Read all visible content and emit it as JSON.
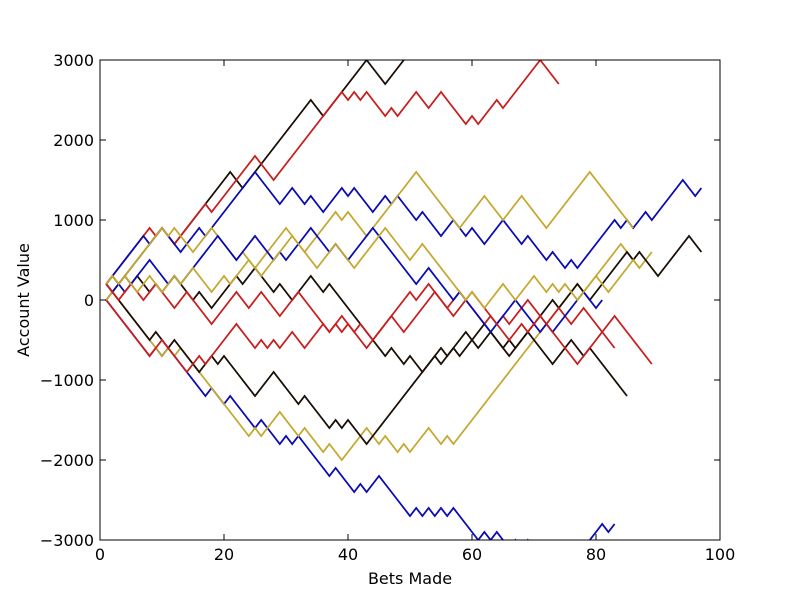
{
  "chart_data": {
    "type": "line",
    "title": "",
    "xlabel": "Bets Made",
    "ylabel": "Account Value",
    "xlim": [
      0,
      100
    ],
    "ylim": [
      -3000,
      3000
    ],
    "xticks": [
      0,
      20,
      40,
      60,
      80,
      100
    ],
    "yticks": [
      -3000,
      -2000,
      -1000,
      0,
      1000,
      2000,
      3000
    ],
    "tick_labels": {
      "x": [
        "0",
        "20",
        "40",
        "60",
        "80",
        "100"
      ],
      "y": [
        "−3000",
        "−2000",
        "−1000",
        "0",
        "1000",
        "2000",
        "3000"
      ]
    },
    "grid": false,
    "legend": "none",
    "step_size": 100,
    "colors": [
      "#1a0e04",
      "#c81e1e",
      "#0a0ab4",
      "#c4a830",
      "#8b1a1a"
    ],
    "series": [
      {
        "color": "#1a0e04",
        "start": 1,
        "start_value": 0,
        "steps": [
          1,
          1,
          1,
          1,
          1,
          1,
          1,
          1,
          1,
          -1,
          -1,
          1,
          1,
          1,
          1,
          1,
          1,
          1,
          1,
          1,
          -1,
          -1,
          1,
          1,
          1,
          1,
          1,
          1,
          1,
          1,
          1,
          1,
          1,
          -1,
          -1,
          1,
          1,
          1,
          1,
          1,
          1,
          1,
          -1,
          -1,
          -1,
          1,
          1,
          1,
          1,
          1,
          1,
          1,
          1,
          -1,
          1,
          -1,
          1,
          1,
          1,
          1,
          1,
          1,
          1,
          1,
          -1,
          -1,
          -1,
          1,
          1,
          1,
          -1,
          -1,
          1,
          -1,
          1,
          1,
          1,
          1,
          -1,
          -1,
          1,
          -1,
          1,
          1,
          1,
          -1,
          -1,
          1,
          1,
          1,
          -1,
          -1,
          1,
          1,
          1,
          -1,
          1
        ]
      },
      {
        "color": "#c81e1e",
        "start": 1,
        "start_value": 200,
        "steps": [
          1,
          1,
          1,
          1,
          1,
          1,
          1,
          -1,
          1,
          -1,
          -1,
          1,
          1,
          1,
          1,
          1,
          -1,
          1,
          1,
          1,
          1,
          1,
          1,
          1,
          -1,
          -1,
          -1,
          1,
          1,
          1,
          1,
          1,
          1,
          1,
          1,
          1,
          1,
          1,
          -1,
          1,
          -1,
          1,
          -1,
          -1,
          -1,
          1,
          -1,
          1,
          1,
          1,
          -1,
          -1,
          1,
          1,
          -1,
          -1,
          -1,
          -1,
          1,
          -1,
          1,
          1,
          1,
          -1,
          1,
          1,
          1,
          1,
          1,
          1,
          -1,
          -1,
          -1
        ]
      },
      {
        "color": "#0a0ab4",
        "start": 1,
        "start_value": 0,
        "steps": [
          -1,
          -1,
          -1,
          -1,
          -1,
          -1,
          -1,
          1,
          -1,
          1,
          -1,
          -1,
          -1,
          -1,
          -1,
          -1,
          1,
          -1,
          -1,
          1,
          -1,
          -1,
          -1,
          -1,
          1,
          -1,
          -1,
          -1,
          1,
          -1,
          1,
          -1,
          -1,
          -1,
          -1,
          -1,
          1,
          -1,
          -1,
          -1,
          1,
          -1,
          1,
          1,
          -1,
          -1,
          -1,
          -1,
          -1,
          1,
          -1,
          1,
          -1,
          1,
          -1,
          1,
          -1,
          -1,
          -1,
          -1,
          1,
          -1,
          1,
          -1,
          -1,
          1,
          -1,
          1,
          -1,
          -1,
          -1,
          -1,
          1,
          1,
          1,
          -1,
          1,
          1,
          1,
          1,
          -1,
          1
        ]
      },
      {
        "color": "#c4a830",
        "start": 1,
        "start_value": 200,
        "steps": [
          -1,
          -1,
          -1,
          -1,
          -1,
          -1,
          -1,
          -1,
          -1,
          1,
          -1,
          1,
          -1,
          -1,
          -1,
          -1,
          -1,
          -1,
          -1,
          -1,
          -1,
          -1,
          -1,
          1,
          -1,
          1,
          1,
          1,
          -1,
          -1,
          -1,
          1,
          -1,
          -1,
          -1,
          1,
          -1,
          -1,
          1,
          1,
          1,
          1,
          -1,
          -1,
          1,
          -1,
          -1,
          1,
          -1,
          1,
          1,
          1,
          -1,
          -1,
          1,
          -1,
          1,
          1,
          1,
          1,
          1,
          1,
          1,
          1,
          1,
          1,
          1,
          1,
          1,
          1,
          1,
          1,
          1,
          1,
          1,
          1,
          -1,
          1,
          1,
          1,
          1,
          1,
          1,
          -1,
          -1,
          -1,
          1,
          1
        ]
      },
      {
        "color": "#1a0e04",
        "start": 1,
        "start_value": 200,
        "steps": [
          -1,
          -1,
          -1,
          -1,
          -1,
          -1,
          -1,
          1,
          -1,
          -1,
          1,
          -1,
          -1,
          -1,
          -1,
          1,
          1,
          -1,
          1,
          -1,
          -1,
          -1,
          -1,
          -1,
          1,
          1,
          1,
          -1,
          -1,
          -1,
          -1,
          1,
          -1,
          -1,
          -1,
          -1,
          1,
          -1,
          1,
          -1,
          -1,
          -1,
          1,
          1,
          1,
          1,
          1,
          1,
          1,
          1,
          1,
          1,
          1,
          1,
          -1,
          1,
          -1,
          1,
          1,
          -1,
          1,
          1,
          -1,
          -1,
          1,
          -1,
          1,
          1,
          1,
          1,
          1,
          1,
          -1,
          1,
          1,
          1,
          -1,
          -1,
          1,
          1,
          1,
          1,
          1,
          1,
          -1,
          1,
          -1,
          -1,
          -1,
          1,
          1,
          1,
          1,
          1,
          -1,
          -1
        ]
      },
      {
        "color": "#0a0ab4",
        "start": 1,
        "start_value": 200,
        "steps": [
          1,
          1,
          1,
          1,
          1,
          1,
          -1,
          1,
          1,
          -1,
          -1,
          -1,
          1,
          1,
          1,
          -1,
          1,
          1,
          1,
          1,
          1,
          1,
          1,
          1,
          -1,
          -1,
          -1,
          -1,
          1,
          1,
          -1,
          -1,
          1,
          -1,
          -1,
          1,
          1,
          1,
          -1,
          1,
          -1,
          -1,
          -1,
          1,
          1,
          -1,
          1,
          -1,
          -1,
          -1,
          1,
          -1,
          -1,
          -1,
          1,
          1,
          -1,
          -1,
          1,
          -1,
          -1,
          1,
          1,
          1,
          -1,
          -1,
          -1,
          1,
          -1,
          -1,
          -1,
          1,
          -1,
          -1,
          1,
          -1,
          1,
          1,
          1,
          1,
          1,
          1,
          -1,
          1,
          -1,
          1,
          1,
          -1,
          1,
          1,
          1,
          1,
          1,
          -1,
          -1,
          1
        ]
      },
      {
        "color": "#c81e1e",
        "start": 1,
        "start_value": 0,
        "steps": [
          -1,
          -1,
          -1,
          -1,
          -1,
          -1,
          -1,
          1,
          1,
          -1,
          -1,
          -1,
          -1,
          1,
          1,
          -1,
          1,
          1,
          1,
          1,
          1,
          -1,
          -1,
          -1,
          1,
          -1,
          1,
          -1,
          1,
          1,
          -1,
          -1,
          1,
          1,
          1,
          -1,
          1,
          -1,
          1,
          -1,
          -1,
          -1,
          1,
          1,
          1,
          1,
          1,
          1,
          1,
          -1,
          1,
          1,
          -1,
          -1,
          -1,
          1,
          1,
          -1,
          -1,
          -1,
          -1,
          1,
          -1,
          1,
          -1,
          1,
          1,
          1,
          -1,
          -1,
          -1,
          1,
          1,
          -1,
          -1,
          1,
          1,
          -1,
          -1,
          -1,
          1,
          1,
          -1,
          -1,
          -1,
          -1,
          -1,
          -1
        ]
      },
      {
        "color": "#c4a830",
        "start": 1,
        "start_value": 0,
        "steps": [
          1,
          1,
          1,
          1,
          1,
          1,
          1,
          1,
          1,
          -1,
          1,
          -1,
          -1,
          -1,
          1,
          1,
          1,
          -1,
          -1,
          -1,
          -1,
          1,
          -1,
          -1,
          1,
          1,
          1,
          1,
          1,
          -1,
          -1,
          -1,
          1,
          1,
          1,
          1,
          1,
          -1,
          1,
          -1,
          -1,
          -1,
          1,
          1,
          1,
          1,
          1,
          1,
          1,
          1,
          -1,
          -1,
          -1,
          -1,
          -1,
          -1,
          -1,
          1,
          1,
          1,
          1,
          -1,
          -1,
          -1,
          1,
          1,
          1,
          -1,
          -1,
          -1,
          -1,
          1,
          1,
          1,
          1,
          1,
          1,
          1,
          -1,
          -1,
          -1,
          -1,
          -1,
          -1,
          -1
        ]
      },
      {
        "color": "#1a0e04",
        "start": 1,
        "start_value": 200,
        "steps": [
          1,
          -1,
          1,
          -1,
          1,
          -1,
          -1,
          1,
          -1,
          1,
          1,
          -1,
          -1,
          -1,
          1,
          -1,
          -1,
          1,
          1,
          1,
          1,
          -1,
          1,
          1,
          -1,
          -1,
          -1,
          1,
          -1,
          -1,
          1,
          1,
          1,
          -1,
          -1,
          1,
          -1,
          -1,
          -1,
          -1,
          -1,
          -1,
          -1,
          -1,
          -1,
          1,
          -1,
          -1,
          1,
          -1,
          -1,
          1,
          1,
          -1,
          1,
          1,
          1,
          1,
          -1,
          1,
          1,
          -1,
          -1,
          -1,
          -1,
          1,
          1,
          1,
          -1,
          -1,
          -1,
          -1,
          1,
          1,
          1,
          -1,
          -1,
          1,
          -1,
          -1,
          -1,
          -1,
          -1,
          -1
        ]
      },
      {
        "color": "#0a0ab4",
        "start": 1,
        "start_value": 200,
        "steps": [
          -1,
          1,
          -1,
          1,
          1,
          1,
          1,
          -1,
          -1,
          -1,
          1,
          -1,
          1,
          1,
          1,
          1,
          1,
          1,
          -1,
          -1,
          -1,
          1,
          1,
          1,
          -1,
          -1,
          -1,
          1,
          -1,
          1,
          1,
          1,
          1,
          -1,
          -1,
          -1,
          1,
          -1,
          -1,
          1,
          1,
          1,
          1,
          -1,
          -1,
          -1,
          -1,
          -1,
          -1,
          -1,
          1,
          1,
          -1,
          -1,
          -1,
          -1,
          1,
          -1,
          -1,
          -1,
          -1,
          -1,
          1,
          1,
          1,
          1,
          -1,
          -1,
          -1,
          -1,
          1,
          -1,
          1,
          1,
          1,
          1,
          1,
          -1,
          -1,
          1
        ]
      },
      {
        "color": "#c81e1e",
        "start": 1,
        "start_value": 200,
        "steps": [
          -1,
          -1,
          1,
          1,
          -1,
          -1,
          1,
          1,
          -1,
          -1,
          -1,
          1,
          1,
          -1,
          -1,
          -1,
          -1,
          1,
          1,
          1,
          1,
          -1,
          -1,
          1,
          1,
          -1,
          -1,
          -1,
          1,
          1,
          1,
          -1,
          -1,
          -1,
          -1,
          -1,
          1,
          1,
          -1,
          -1,
          1,
          -1,
          -1,
          1,
          1,
          1,
          -1,
          -1,
          1,
          1,
          1,
          1,
          1,
          -1,
          -1,
          -1,
          1,
          1,
          1,
          -1,
          -1,
          -1,
          -1,
          -1,
          -1,
          1,
          1,
          -1,
          1,
          1,
          -1,
          -1,
          -1,
          -1,
          -1,
          -1,
          1,
          1,
          1,
          1,
          -1,
          -1
        ]
      },
      {
        "color": "#c4a830",
        "start": 1,
        "start_value": 200,
        "steps": [
          1,
          -1,
          1,
          -1,
          -1,
          1,
          1,
          -1,
          -1,
          1,
          1,
          -1,
          1,
          1,
          -1,
          -1,
          -1,
          1,
          1,
          -1,
          1,
          1,
          1,
          -1,
          -1,
          1,
          1,
          1,
          1,
          1,
          -1,
          -1,
          -1,
          -1,
          1,
          1,
          1,
          -1,
          -1,
          -1,
          1,
          1,
          1,
          1,
          1,
          -1,
          -1,
          -1,
          -1,
          1,
          1,
          -1,
          -1,
          -1,
          -1,
          -1,
          -1,
          -1,
          1,
          -1,
          -1,
          1,
          1,
          1,
          -1,
          -1,
          1,
          1,
          1,
          -1,
          -1,
          1,
          -1,
          1,
          -1,
          -1,
          1,
          1,
          1,
          -1,
          -1,
          1,
          1,
          1,
          1,
          -1
        ]
      }
    ]
  }
}
